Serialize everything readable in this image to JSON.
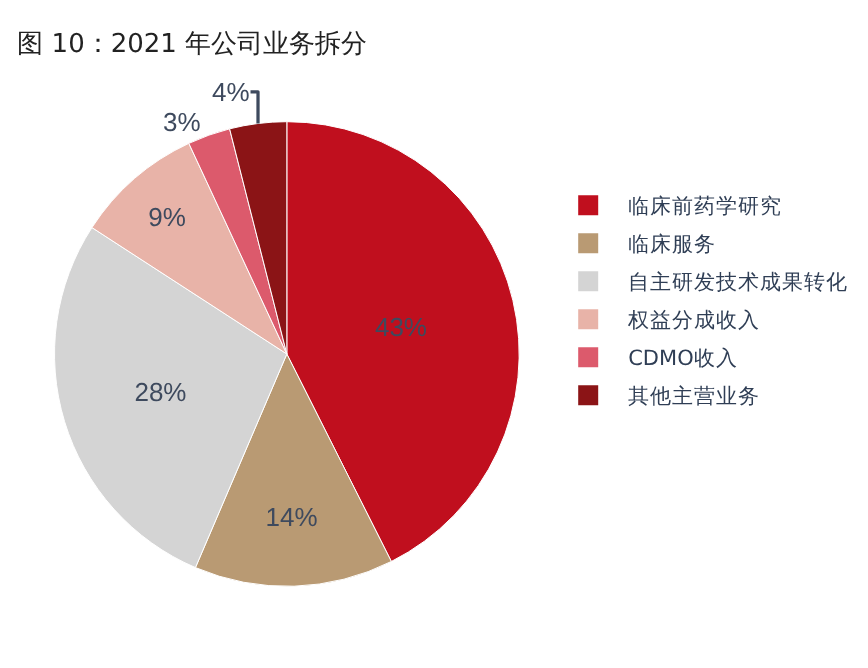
{
  "chart_data": {
    "type": "pie",
    "title": "图 10：2021 年公司业务拆分",
    "categories": [
      "临床前药学研究",
      "临床服务",
      "自主研发技术成果转化",
      "权益分成收入",
      "CDMO收入",
      "其他主营业务"
    ],
    "values": [
      43,
      14,
      28,
      9,
      3,
      4
    ],
    "value_labels": [
      "43%",
      "14%",
      "28%",
      "9%",
      "3%",
      "4%"
    ],
    "colors": [
      "#c00f1e",
      "#b99a73",
      "#d4d4d4",
      "#e8b3a8",
      "#dc5a6c",
      "#8b1416"
    ],
    "legend": "right"
  }
}
